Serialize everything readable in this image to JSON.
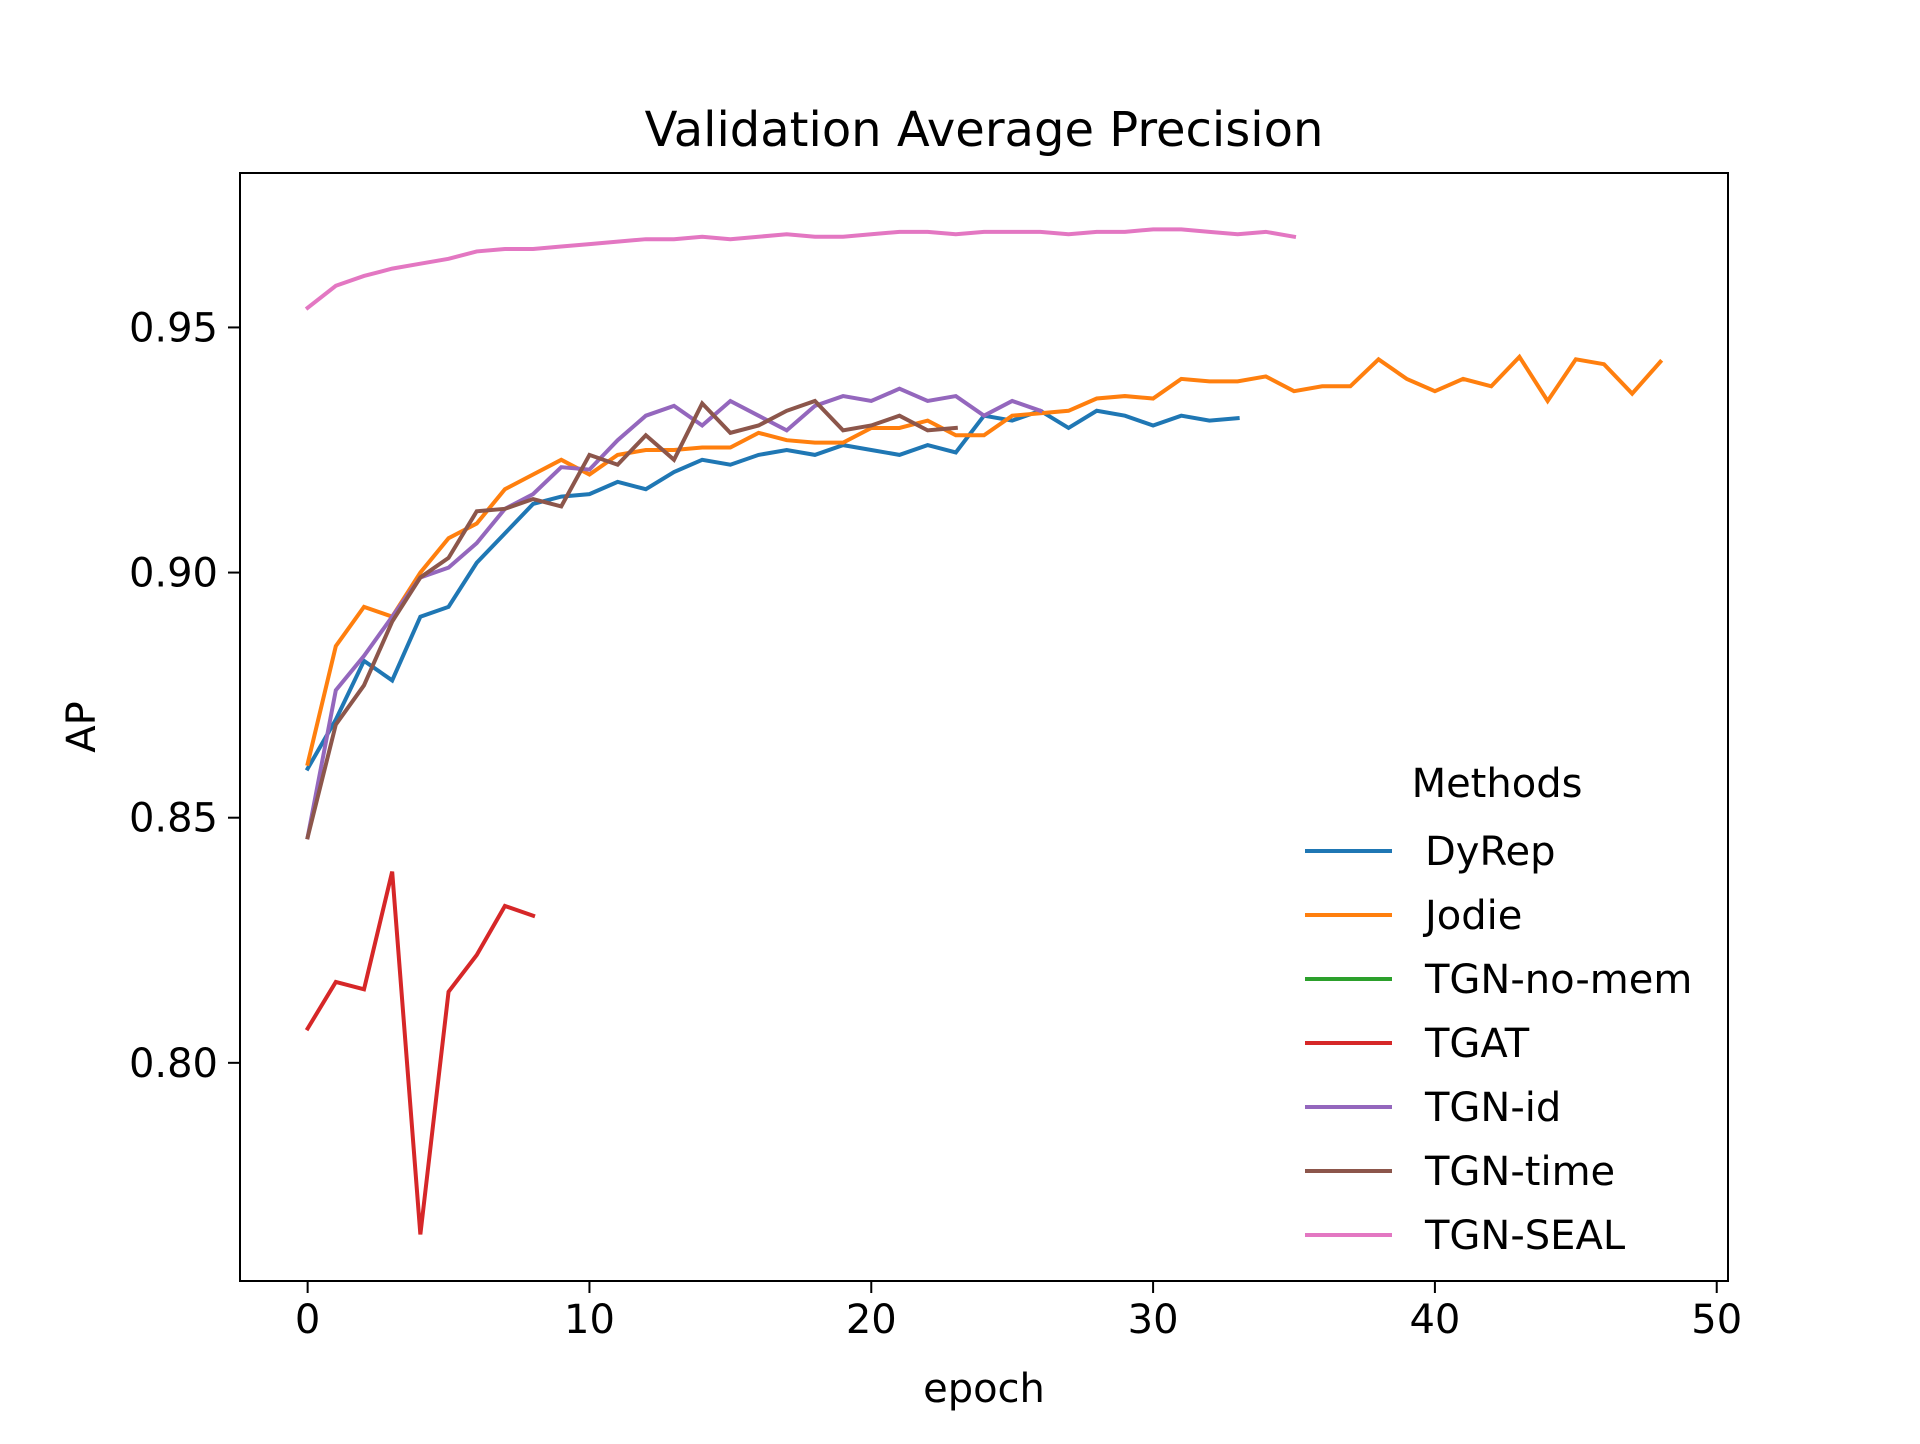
{
  "chart_data": {
    "type": "line",
    "title": "Validation Average Precision",
    "xlabel": "epoch",
    "ylabel": "AP",
    "xlim": [
      -2.4,
      50.4
    ],
    "ylim": [
      0.7555,
      0.9815
    ],
    "xticks": [
      0,
      10,
      20,
      30,
      40,
      50
    ],
    "xtick_labels": [
      "0",
      "10",
      "20",
      "30",
      "40",
      "50"
    ],
    "yticks": [
      0.8,
      0.85,
      0.9,
      0.95
    ],
    "ytick_labels": [
      "0.80",
      "0.85",
      "0.90",
      "0.95"
    ],
    "grid": false,
    "legend": {
      "title": "Methods",
      "position": "lower-right"
    },
    "series": [
      {
        "name": "DyRep",
        "color": "#1f77b4",
        "x": [
          0,
          1,
          2,
          3,
          4,
          5,
          6,
          7,
          8,
          9,
          10,
          11,
          12,
          13,
          14,
          15,
          16,
          17,
          18,
          19,
          20,
          21,
          22,
          23,
          24,
          25,
          26,
          27,
          28,
          29,
          30,
          31,
          32,
          33
        ],
        "values": [
          0.86,
          0.87,
          0.882,
          0.878,
          0.891,
          0.893,
          0.902,
          0.908,
          0.914,
          0.9155,
          0.916,
          0.9185,
          0.917,
          0.9205,
          0.923,
          0.922,
          0.924,
          0.925,
          0.924,
          0.926,
          0.925,
          0.924,
          0.926,
          0.9245,
          0.932,
          0.931,
          0.933,
          0.9295,
          0.933,
          0.932,
          0.93,
          0.932,
          0.931,
          0.9315
        ]
      },
      {
        "name": "Jodie",
        "color": "#ff7f0e",
        "x": [
          0,
          1,
          2,
          3,
          4,
          5,
          6,
          7,
          8,
          9,
          10,
          11,
          12,
          13,
          14,
          15,
          16,
          17,
          18,
          19,
          20,
          21,
          22,
          23,
          24,
          25,
          26,
          27,
          28,
          29,
          30,
          31,
          32,
          33,
          34,
          35,
          36,
          37,
          38,
          39,
          40,
          41,
          42,
          43,
          44,
          45,
          46,
          47,
          48
        ],
        "values": [
          0.861,
          0.885,
          0.893,
          0.891,
          0.9,
          0.907,
          0.91,
          0.917,
          0.92,
          0.923,
          0.92,
          0.924,
          0.925,
          0.925,
          0.9255,
          0.9255,
          0.9285,
          0.927,
          0.9265,
          0.9265,
          0.9295,
          0.9295,
          0.931,
          0.928,
          0.928,
          0.932,
          0.9325,
          0.933,
          0.9355,
          0.936,
          0.9355,
          0.9395,
          0.939,
          0.939,
          0.94,
          0.937,
          0.938,
          0.938,
          0.9435,
          0.9395,
          0.937,
          0.9395,
          0.938,
          0.944,
          0.935,
          0.9435,
          0.9425,
          0.9365,
          0.943
        ]
      },
      {
        "name": "TGN-no-mem",
        "color": "#2ca02c",
        "x": [],
        "values": []
      },
      {
        "name": "TGAT",
        "color": "#d62728",
        "x": [
          0,
          1,
          2,
          3,
          4,
          5,
          6,
          7,
          8
        ],
        "values": [
          0.807,
          0.8165,
          0.815,
          0.839,
          0.765,
          0.8145,
          0.822,
          0.832,
          0.83
        ]
      },
      {
        "name": "TGN-id",
        "color": "#9467bd",
        "x": [
          0,
          1,
          2,
          3,
          4,
          5,
          6,
          7,
          8,
          9,
          10,
          11,
          12,
          13,
          14,
          15,
          16,
          17,
          18,
          19,
          20,
          21,
          22,
          23,
          24,
          25,
          26
        ],
        "values": [
          0.846,
          0.876,
          0.883,
          0.891,
          0.899,
          0.901,
          0.906,
          0.913,
          0.916,
          0.9215,
          0.921,
          0.927,
          0.932,
          0.934,
          0.93,
          0.935,
          0.932,
          0.929,
          0.934,
          0.936,
          0.935,
          0.9375,
          0.935,
          0.936,
          0.932,
          0.935,
          0.933
        ]
      },
      {
        "name": "TGN-time",
        "color": "#8c564b",
        "x": [
          0,
          1,
          2,
          3,
          4,
          5,
          6,
          7,
          8,
          9,
          10,
          11,
          12,
          13,
          14,
          15,
          16,
          17,
          18,
          19,
          20,
          21,
          22,
          23
        ],
        "values": [
          0.846,
          0.869,
          0.877,
          0.89,
          0.899,
          0.903,
          0.9125,
          0.913,
          0.915,
          0.9135,
          0.924,
          0.922,
          0.928,
          0.923,
          0.9345,
          0.9285,
          0.93,
          0.933,
          0.935,
          0.929,
          0.93,
          0.932,
          0.929,
          0.9295
        ]
      },
      {
        "name": "TGN-SEAL",
        "color": "#e377c2",
        "x": [
          0,
          1,
          2,
          3,
          4,
          5,
          6,
          7,
          8,
          9,
          10,
          11,
          12,
          13,
          14,
          15,
          16,
          17,
          18,
          19,
          20,
          21,
          22,
          23,
          24,
          25,
          26,
          27,
          28,
          29,
          30,
          31,
          32,
          33,
          34,
          35
        ],
        "values": [
          0.954,
          0.9585,
          0.9605,
          0.962,
          0.963,
          0.964,
          0.9655,
          0.966,
          0.966,
          0.9665,
          0.967,
          0.9675,
          0.968,
          0.968,
          0.9685,
          0.968,
          0.9685,
          0.969,
          0.9685,
          0.9685,
          0.969,
          0.9695,
          0.9695,
          0.969,
          0.9695,
          0.9695,
          0.9695,
          0.969,
          0.9695,
          0.9695,
          0.97,
          0.97,
          0.9695,
          0.969,
          0.9695,
          0.9685
        ]
      }
    ]
  }
}
